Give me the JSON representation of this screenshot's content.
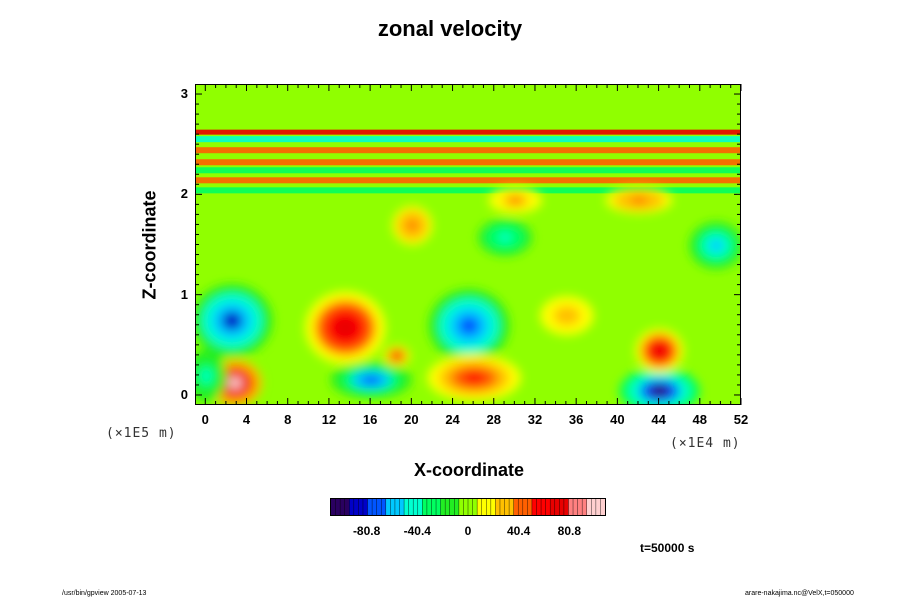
{
  "chart_data": {
    "type": "heatmap",
    "title": "zonal velocity",
    "xlabel": "X-coordinate",
    "ylabel": "Z-coordinate",
    "x_scale_label": "(×1E4 m)",
    "y_scale_label": "(×1E5 m)",
    "x_ticks": [
      "0",
      "4",
      "8",
      "12",
      "16",
      "20",
      "24",
      "28",
      "32",
      "36",
      "40",
      "44",
      "48",
      "52"
    ],
    "y_ticks": [
      "0",
      "1",
      "2",
      "3"
    ],
    "xlim": [
      -1,
      52
    ],
    "ylim": [
      -0.1,
      3.1
    ],
    "colorbar": {
      "ticks": [
        "-80.8",
        "-40.4",
        "0",
        "40.4",
        "80.8"
      ],
      "range": [
        -110,
        110
      ],
      "colors": [
        "#2a0060",
        "#0000c8",
        "#0055ff",
        "#00c8ff",
        "#00ffd0",
        "#00ff60",
        "#22ee22",
        "#90ff00",
        "#ffff00",
        "#ffc000",
        "#ff6000",
        "#ff0000",
        "#e80000",
        "#ff8080",
        "#ffd0d0"
      ]
    },
    "time_label": "t=50000 s",
    "features": [
      {
        "x": 2.5,
        "z": 0.75,
        "value": -85,
        "rx": 3.0,
        "rz": 0.28
      },
      {
        "x": 13.5,
        "z": 0.68,
        "value": 75,
        "rx": 3.0,
        "rz": 0.28
      },
      {
        "x": 25.5,
        "z": 0.7,
        "value": -75,
        "rx": 3.0,
        "rz": 0.28
      },
      {
        "x": 2.8,
        "z": 0.13,
        "value": 100,
        "rx": 2.0,
        "rz": 0.18
      },
      {
        "x": 16.0,
        "z": 0.16,
        "value": -70,
        "rx": 3.0,
        "rz": 0.14
      },
      {
        "x": 26.0,
        "z": 0.18,
        "value": 60,
        "rx": 3.5,
        "rz": 0.18
      },
      {
        "x": 44.0,
        "z": 0.05,
        "value": -100,
        "rx": 3.0,
        "rz": 0.18
      },
      {
        "x": 44.0,
        "z": 0.45,
        "value": 80,
        "rx": 1.8,
        "rz": 0.17
      },
      {
        "x": 49.5,
        "z": 1.5,
        "value": -60,
        "rx": 2.0,
        "rz": 0.18
      },
      {
        "x": 29.0,
        "z": 1.58,
        "value": -45,
        "rx": 2.0,
        "rz": 0.14
      },
      {
        "x": 42.0,
        "z": 1.95,
        "value": 45,
        "rx": 2.5,
        "rz": 0.1
      },
      {
        "x": 20.0,
        "z": 1.7,
        "value": 45,
        "rx": 1.5,
        "rz": 0.15
      },
      {
        "x": 30.0,
        "z": 1.95,
        "value": 40,
        "rx": 2.0,
        "rz": 0.1
      },
      {
        "x": 0.0,
        "z": 0.2,
        "value": -40,
        "rx": 1.5,
        "rz": 0.2
      },
      {
        "x": 35.0,
        "z": 0.8,
        "value": 35,
        "rx": 2.0,
        "rz": 0.15
      },
      {
        "x": 18.5,
        "z": 0.4,
        "value": 70,
        "rx": 1.0,
        "rz": 0.08
      }
    ],
    "bands": [
      {
        "z": 2.63,
        "value": 80,
        "width": 0.025
      },
      {
        "z": 2.56,
        "value": -40,
        "width": 0.03
      },
      {
        "z": 2.45,
        "value": 40,
        "width": 0.03
      },
      {
        "z": 2.33,
        "value": 45,
        "width": 0.03
      },
      {
        "z": 2.25,
        "value": -25,
        "width": 0.03
      },
      {
        "z": 2.15,
        "value": 40,
        "width": 0.03
      },
      {
        "z": 2.05,
        "value": -30,
        "width": 0.03
      }
    ]
  },
  "footer": {
    "left": "/usr/bin/gpview 2005-07-13",
    "right": "arare-nakajima.nc@VelX,t=050000"
  }
}
